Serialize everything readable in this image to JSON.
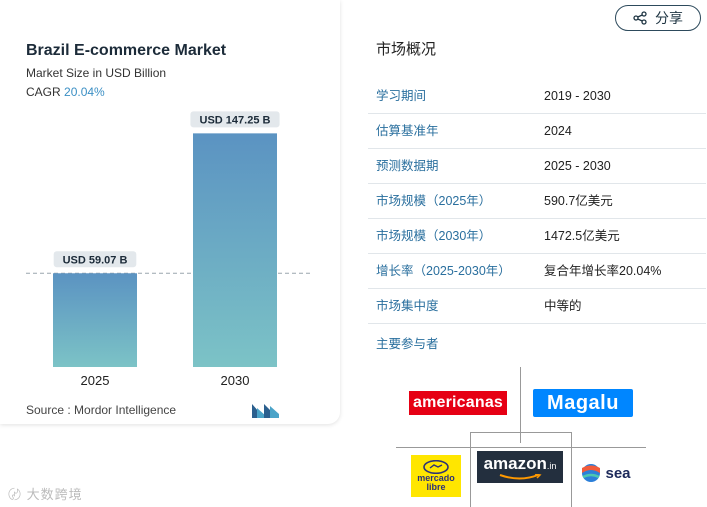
{
  "header": {
    "share_label": "分享"
  },
  "chart_card": {
    "title": "Brazil E-commerce Market",
    "subtitle": "Market Size in USD Billion",
    "cagr_label": "CAGR",
    "cagr_value": "20.04%",
    "source": "Source :  Mordor Intelligence"
  },
  "chart_data": {
    "type": "bar",
    "title": "Brazil E-commerce Market",
    "subtitle": "Market Size in USD Billion",
    "categories": [
      "2025",
      "2030"
    ],
    "values": [
      59.07,
      147.25
    ],
    "data_labels": [
      "USD 59.07 B",
      "USD 147.25 B"
    ],
    "ylim": [
      0,
      150
    ],
    "reference_line": 59.07,
    "xlabel": "",
    "ylabel": "",
    "grid": false,
    "bar_color_top": "#5b93c2",
    "bar_color_bottom": "#7cc3c6"
  },
  "overview": {
    "title": "市场概况",
    "rows": [
      {
        "key": "学习期间",
        "value": "2019 - 2030"
      },
      {
        "key": "估算基准年",
        "value": "2024"
      },
      {
        "key": "预测数据期",
        "value": "2025 - 2030"
      },
      {
        "key": "市场规模（2025年）",
        "value": "590.7亿美元"
      },
      {
        "key": "市场规模（2030年）",
        "value": "1472.5亿美元"
      },
      {
        "key": "增长率（2025-2030年）",
        "value": "复合年增长率20.04%"
      },
      {
        "key": "市场集中度",
        "value": "中等的"
      }
    ],
    "players_label": "主要参与者"
  },
  "players": {
    "americanas": "americanas",
    "magalu": "Magalu",
    "mercado_line1": "mercado",
    "mercado_line2": "libre",
    "amazon": "amazon",
    "amazon_suffix": ".in",
    "sea": "sea"
  },
  "watermark": "大数跨境",
  "colors": {
    "accent": "#2a6f9e",
    "americanas": "#e60014",
    "magalu": "#0086ff",
    "mercado": "#ffe600",
    "amazon_bg": "#232f3e"
  }
}
